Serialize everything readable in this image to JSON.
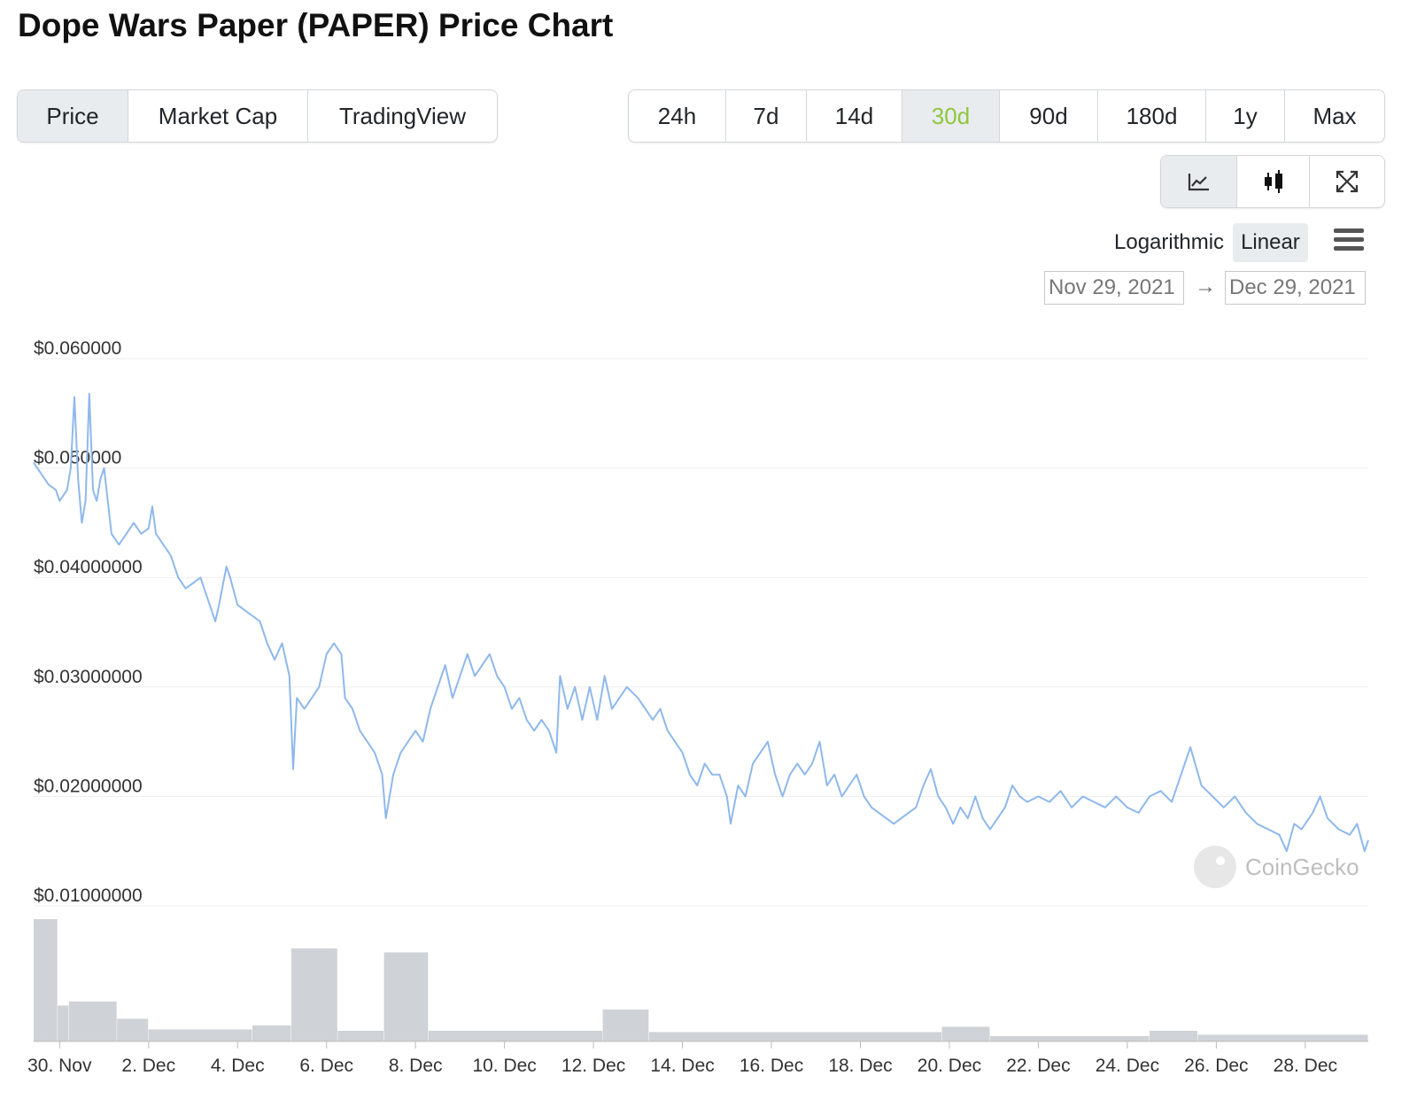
{
  "page_title": "Dope Wars Paper (PAPER) Price Chart",
  "view_tabs": [
    "Price",
    "Market Cap",
    "TradingView"
  ],
  "range_tabs": [
    "24h",
    "7d",
    "14d",
    "30d",
    "90d",
    "180d",
    "1y",
    "Max"
  ],
  "active_view": "Price",
  "active_range": "30d",
  "chart_type_icons": [
    "line-chart-icon",
    "candlestick-icon",
    "fullscreen-icon"
  ],
  "scale_options": [
    "Logarithmic",
    "Linear"
  ],
  "active_scale": "Linear",
  "date_from": "Nov 29, 2021",
  "date_arrow": "→",
  "date_to": "Dec 29, 2021",
  "watermark": "CoinGecko",
  "colors": {
    "accent": "#8dc63f",
    "price_line": "#8fb8ec",
    "volume_bar": "#cfd2d6",
    "grid": "#eeeeee"
  },
  "chart_data": {
    "type": "line",
    "y_scale": "linear",
    "ylim": [
      0.01,
      0.06
    ],
    "y_tick_labels": [
      "$0.060000",
      "$0.050000",
      "$0.04000000",
      "$0.03000000",
      "$0.02000000",
      "$0.01000000"
    ],
    "x_tick_labels": [
      "30. Nov",
      "2. Dec",
      "4. Dec",
      "6. Dec",
      "8. Dec",
      "10. Dec",
      "12. Dec",
      "14. Dec",
      "16. Dec",
      "18. Dec",
      "20. Dec",
      "22. Dec",
      "24. Dec",
      "26. Dec",
      "28. Dec"
    ],
    "xlim": [
      "2021-11-29T10:00",
      "2021-12-29T10:00"
    ],
    "grid": true,
    "series": [
      {
        "values": [
          [
            "2021-11-29T10:00",
            0.0505
          ],
          [
            "2021-11-29T14:00",
            0.0495
          ],
          [
            "2021-11-29T18:00",
            0.0485
          ],
          [
            "2021-11-29T22:00",
            0.048
          ],
          [
            "2021-11-30T00:00",
            0.047
          ],
          [
            "2021-11-30T04:00",
            0.048
          ],
          [
            "2021-11-30T06:00",
            0.05
          ],
          [
            "2021-11-30T08:00",
            0.0565
          ],
          [
            "2021-11-30T10:00",
            0.049
          ],
          [
            "2021-11-30T12:00",
            0.045
          ],
          [
            "2021-11-30T14:00",
            0.047
          ],
          [
            "2021-11-30T16:00",
            0.0568
          ],
          [
            "2021-11-30T18:00",
            0.048
          ],
          [
            "2021-11-30T20:00",
            0.047
          ],
          [
            "2021-11-30T22:00",
            0.049
          ],
          [
            "2021-12-01T00:00",
            0.05
          ],
          [
            "2021-12-01T04:00",
            0.044
          ],
          [
            "2021-12-01T08:00",
            0.043
          ],
          [
            "2021-12-01T12:00",
            0.044
          ],
          [
            "2021-12-01T16:00",
            0.045
          ],
          [
            "2021-12-01T20:00",
            0.044
          ],
          [
            "2021-12-02T00:00",
            0.0445
          ],
          [
            "2021-12-02T02:00",
            0.0465
          ],
          [
            "2021-12-02T04:00",
            0.044
          ],
          [
            "2021-12-02T08:00",
            0.043
          ],
          [
            "2021-12-02T12:00",
            0.042
          ],
          [
            "2021-12-02T16:00",
            0.04
          ],
          [
            "2021-12-02T20:00",
            0.039
          ],
          [
            "2021-12-03T00:00",
            0.0395
          ],
          [
            "2021-12-03T04:00",
            0.04
          ],
          [
            "2021-12-03T08:00",
            0.038
          ],
          [
            "2021-12-03T12:00",
            0.036
          ],
          [
            "2021-12-03T14:00",
            0.0375
          ],
          [
            "2021-12-03T18:00",
            0.041
          ],
          [
            "2021-12-03T20:00",
            0.04
          ],
          [
            "2021-12-04T00:00",
            0.0375
          ],
          [
            "2021-12-04T04:00",
            0.037
          ],
          [
            "2021-12-04T08:00",
            0.0365
          ],
          [
            "2021-12-04T12:00",
            0.036
          ],
          [
            "2021-12-04T16:00",
            0.034
          ],
          [
            "2021-12-04T20:00",
            0.0325
          ],
          [
            "2021-12-05T00:00",
            0.034
          ],
          [
            "2021-12-05T04:00",
            0.031
          ],
          [
            "2021-12-05T06:00",
            0.0225
          ],
          [
            "2021-12-05T08:00",
            0.029
          ],
          [
            "2021-12-05T12:00",
            0.028
          ],
          [
            "2021-12-05T16:00",
            0.029
          ],
          [
            "2021-12-05T20:00",
            0.03
          ],
          [
            "2021-12-06T00:00",
            0.033
          ],
          [
            "2021-12-06T04:00",
            0.034
          ],
          [
            "2021-12-06T08:00",
            0.033
          ],
          [
            "2021-12-06T10:00",
            0.029
          ],
          [
            "2021-12-06T14:00",
            0.028
          ],
          [
            "2021-12-06T18:00",
            0.026
          ],
          [
            "2021-12-06T22:00",
            0.025
          ],
          [
            "2021-12-07T02:00",
            0.024
          ],
          [
            "2021-12-07T06:00",
            0.022
          ],
          [
            "2021-12-07T08:00",
            0.018
          ],
          [
            "2021-12-07T12:00",
            0.022
          ],
          [
            "2021-12-07T16:00",
            0.024
          ],
          [
            "2021-12-07T20:00",
            0.025
          ],
          [
            "2021-12-08T00:00",
            0.026
          ],
          [
            "2021-12-08T04:00",
            0.025
          ],
          [
            "2021-12-08T08:00",
            0.028
          ],
          [
            "2021-12-08T12:00",
            0.03
          ],
          [
            "2021-12-08T16:00",
            0.032
          ],
          [
            "2021-12-08T20:00",
            0.029
          ],
          [
            "2021-12-09T00:00",
            0.031
          ],
          [
            "2021-12-09T04:00",
            0.033
          ],
          [
            "2021-12-09T08:00",
            0.031
          ],
          [
            "2021-12-09T12:00",
            0.032
          ],
          [
            "2021-12-09T16:00",
            0.033
          ],
          [
            "2021-12-09T20:00",
            0.031
          ],
          [
            "2021-12-10T00:00",
            0.03
          ],
          [
            "2021-12-10T04:00",
            0.028
          ],
          [
            "2021-12-10T08:00",
            0.029
          ],
          [
            "2021-12-10T12:00",
            0.027
          ],
          [
            "2021-12-10T16:00",
            0.026
          ],
          [
            "2021-12-10T20:00",
            0.027
          ],
          [
            "2021-12-11T00:00",
            0.026
          ],
          [
            "2021-12-11T04:00",
            0.024
          ],
          [
            "2021-12-11T06:00",
            0.031
          ],
          [
            "2021-12-11T10:00",
            0.028
          ],
          [
            "2021-12-11T14:00",
            0.03
          ],
          [
            "2021-12-11T18:00",
            0.027
          ],
          [
            "2021-12-11T22:00",
            0.03
          ],
          [
            "2021-12-12T02:00",
            0.027
          ],
          [
            "2021-12-12T06:00",
            0.031
          ],
          [
            "2021-12-12T10:00",
            0.028
          ],
          [
            "2021-12-12T14:00",
            0.029
          ],
          [
            "2021-12-12T18:00",
            0.03
          ],
          [
            "2021-12-13T00:00",
            0.029
          ],
          [
            "2021-12-13T04:00",
            0.028
          ],
          [
            "2021-12-13T08:00",
            0.027
          ],
          [
            "2021-12-13T12:00",
            0.028
          ],
          [
            "2021-12-13T16:00",
            0.026
          ],
          [
            "2021-12-13T20:00",
            0.025
          ],
          [
            "2021-12-14T00:00",
            0.024
          ],
          [
            "2021-12-14T04:00",
            0.022
          ],
          [
            "2021-12-14T08:00",
            0.021
          ],
          [
            "2021-12-14T12:00",
            0.023
          ],
          [
            "2021-12-14T16:00",
            0.022
          ],
          [
            "2021-12-14T20:00",
            0.022
          ],
          [
            "2021-12-15T00:00",
            0.02
          ],
          [
            "2021-12-15T02:00",
            0.0175
          ],
          [
            "2021-12-15T06:00",
            0.021
          ],
          [
            "2021-12-15T10:00",
            0.02
          ],
          [
            "2021-12-15T14:00",
            0.023
          ],
          [
            "2021-12-15T18:00",
            0.024
          ],
          [
            "2021-12-15T22:00",
            0.025
          ],
          [
            "2021-12-16T02:00",
            0.022
          ],
          [
            "2021-12-16T06:00",
            0.02
          ],
          [
            "2021-12-16T10:00",
            0.022
          ],
          [
            "2021-12-16T14:00",
            0.023
          ],
          [
            "2021-12-16T18:00",
            0.022
          ],
          [
            "2021-12-16T22:00",
            0.023
          ],
          [
            "2021-12-17T02:00",
            0.025
          ],
          [
            "2021-12-17T06:00",
            0.021
          ],
          [
            "2021-12-17T10:00",
            0.022
          ],
          [
            "2021-12-17T14:00",
            0.02
          ],
          [
            "2021-12-17T18:00",
            0.021
          ],
          [
            "2021-12-17T22:00",
            0.022
          ],
          [
            "2021-12-18T02:00",
            0.02
          ],
          [
            "2021-12-18T06:00",
            0.019
          ],
          [
            "2021-12-18T10:00",
            0.0185
          ],
          [
            "2021-12-18T14:00",
            0.018
          ],
          [
            "2021-12-18T18:00",
            0.0175
          ],
          [
            "2021-12-18T22:00",
            0.018
          ],
          [
            "2021-12-19T02:00",
            0.0185
          ],
          [
            "2021-12-19T06:00",
            0.019
          ],
          [
            "2021-12-19T10:00",
            0.021
          ],
          [
            "2021-12-19T14:00",
            0.0225
          ],
          [
            "2021-12-19T18:00",
            0.02
          ],
          [
            "2021-12-19T22:00",
            0.019
          ],
          [
            "2021-12-20T02:00",
            0.0175
          ],
          [
            "2021-12-20T06:00",
            0.019
          ],
          [
            "2021-12-20T10:00",
            0.018
          ],
          [
            "2021-12-20T14:00",
            0.02
          ],
          [
            "2021-12-20T18:00",
            0.018
          ],
          [
            "2021-12-20T22:00",
            0.017
          ],
          [
            "2021-12-21T02:00",
            0.018
          ],
          [
            "2021-12-21T06:00",
            0.019
          ],
          [
            "2021-12-21T10:00",
            0.021
          ],
          [
            "2021-12-21T14:00",
            0.02
          ],
          [
            "2021-12-21T18:00",
            0.0195
          ],
          [
            "2021-12-22T00:00",
            0.02
          ],
          [
            "2021-12-22T06:00",
            0.0195
          ],
          [
            "2021-12-22T12:00",
            0.0205
          ],
          [
            "2021-12-22T18:00",
            0.019
          ],
          [
            "2021-12-23T00:00",
            0.02
          ],
          [
            "2021-12-23T06:00",
            0.0195
          ],
          [
            "2021-12-23T12:00",
            0.019
          ],
          [
            "2021-12-23T18:00",
            0.02
          ],
          [
            "2021-12-24T00:00",
            0.019
          ],
          [
            "2021-12-24T06:00",
            0.0185
          ],
          [
            "2021-12-24T12:00",
            0.02
          ],
          [
            "2021-12-24T18:00",
            0.0205
          ],
          [
            "2021-12-25T00:00",
            0.0195
          ],
          [
            "2021-12-25T06:00",
            0.0225
          ],
          [
            "2021-12-25T10:00",
            0.0245
          ],
          [
            "2021-12-25T16:00",
            0.021
          ],
          [
            "2021-12-25T22:00",
            0.02
          ],
          [
            "2021-12-26T04:00",
            0.019
          ],
          [
            "2021-12-26T10:00",
            0.02
          ],
          [
            "2021-12-26T16:00",
            0.0185
          ],
          [
            "2021-12-26T22:00",
            0.0175
          ],
          [
            "2021-12-27T04:00",
            0.017
          ],
          [
            "2021-12-27T10:00",
            0.0165
          ],
          [
            "2021-12-27T14:00",
            0.015
          ],
          [
            "2021-12-27T18:00",
            0.0175
          ],
          [
            "2021-12-27T22:00",
            0.017
          ],
          [
            "2021-12-28T04:00",
            0.0185
          ],
          [
            "2021-12-28T08:00",
            0.02
          ],
          [
            "2021-12-28T12:00",
            0.018
          ],
          [
            "2021-12-28T18:00",
            0.017
          ],
          [
            "2021-12-29T00:00",
            0.0165
          ],
          [
            "2021-12-29T04:00",
            0.0175
          ],
          [
            "2021-12-29T08:00",
            0.015
          ],
          [
            "2021-12-29T10:00",
            0.016
          ]
        ]
      }
    ],
    "volume_bars": [
      {
        "from": "2021-11-29T10:00",
        "to": "2021-11-29T23:00",
        "level": 0.92
      },
      {
        "from": "2021-11-29T23:00",
        "to": "2021-11-30T05:00",
        "level": 0.27
      },
      {
        "from": "2021-11-30T05:00",
        "to": "2021-12-01T07:00",
        "level": 0.3
      },
      {
        "from": "2021-12-01T07:00",
        "to": "2021-12-02T00:00",
        "level": 0.17
      },
      {
        "from": "2021-12-02T00:00",
        "to": "2021-12-04T08:00",
        "level": 0.09
      },
      {
        "from": "2021-12-04T08:00",
        "to": "2021-12-05T05:00",
        "level": 0.12
      },
      {
        "from": "2021-12-05T05:00",
        "to": "2021-12-06T06:00",
        "level": 0.7
      },
      {
        "from": "2021-12-06T06:00",
        "to": "2021-12-07T07:00",
        "level": 0.08
      },
      {
        "from": "2021-12-07T07:00",
        "to": "2021-12-08T07:00",
        "level": 0.67
      },
      {
        "from": "2021-12-08T07:00",
        "to": "2021-12-12T05:00",
        "level": 0.08
      },
      {
        "from": "2021-12-12T05:00",
        "to": "2021-12-13T06:00",
        "level": 0.24
      },
      {
        "from": "2021-12-13T06:00",
        "to": "2021-12-19T20:00",
        "level": 0.07
      },
      {
        "from": "2021-12-19T20:00",
        "to": "2021-12-20T22:00",
        "level": 0.11
      },
      {
        "from": "2021-12-20T22:00",
        "to": "2021-12-24T12:00",
        "level": 0.04
      },
      {
        "from": "2021-12-24T12:00",
        "to": "2021-12-25T14:00",
        "level": 0.08
      },
      {
        "from": "2021-12-25T14:00",
        "to": "2021-12-29T10:00",
        "level": 0.05
      }
    ]
  }
}
